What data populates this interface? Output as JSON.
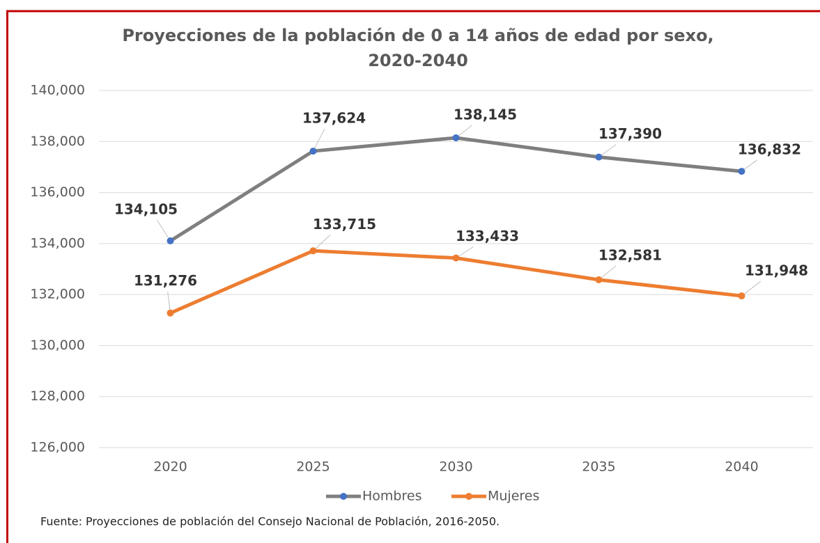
{
  "chart_data": {
    "type": "line",
    "title": "Proyecciones de la población de 0 a 14 años de edad por sexo,",
    "subtitle": "2020-2040",
    "categories": [
      "2020",
      "2025",
      "2030",
      "2035",
      "2040"
    ],
    "series": [
      {
        "name": "Hombres",
        "color": "#7f7f7f",
        "marker_color": "#4472c4",
        "values": [
          134105,
          137624,
          138145,
          137390,
          136832
        ],
        "value_labels": [
          "134,105",
          "137,624",
          "138,145",
          "137,390",
          "136,832"
        ]
      },
      {
        "name": "Mujeres",
        "color": "#ed7d31",
        "marker_color": "#ed7d31",
        "values": [
          131276,
          133715,
          133433,
          132581,
          131948
        ],
        "value_labels": [
          "131,276",
          "133,715",
          "133,433",
          "132,581",
          "131,948"
        ]
      }
    ],
    "ylim": [
      126000,
      140000
    ],
    "yticks": [
      {
        "value": 126000,
        "label": "126,000"
      },
      {
        "value": 128000,
        "label": "128,000"
      },
      {
        "value": 130000,
        "label": "130,000"
      },
      {
        "value": 132000,
        "label": "132,000"
      },
      {
        "value": 134000,
        "label": "134,000"
      },
      {
        "value": 136000,
        "label": "136,000"
      },
      {
        "value": 138000,
        "label": "138,000"
      },
      {
        "value": 140000,
        "label": "140,000"
      }
    ],
    "grid": true,
    "legend": "bottom",
    "source": "Fuente: Proyecciones de población del Consejo Nacional de Población, 2016-2050."
  }
}
